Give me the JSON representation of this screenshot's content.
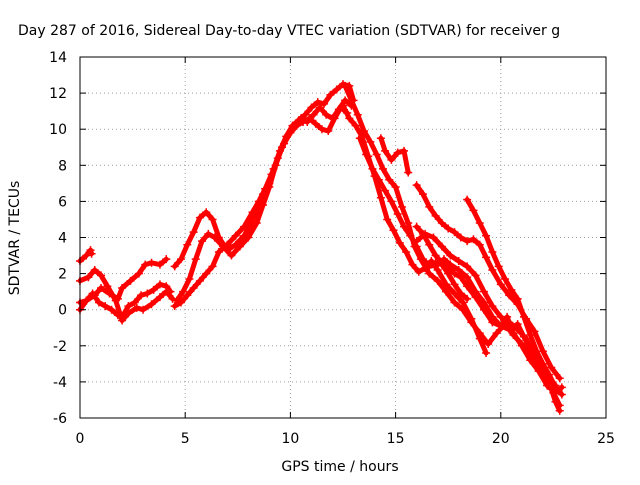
{
  "chart_data": {
    "type": "scatter",
    "title": "Day 287 of 2016, Sidereal Day-to-day VTEC variation (SDTVAR) for receiver g",
    "xlabel": "GPS time / hours",
    "ylabel": "SDTVAR / TECUs",
    "xlim": [
      0,
      25
    ],
    "ylim": [
      -6,
      14
    ],
    "x_ticks": [
      "0",
      "5",
      "10",
      "15",
      "20",
      "25"
    ],
    "y_ticks": [
      "-6",
      "-4",
      "-2",
      "0",
      "2",
      "4",
      "6",
      "8",
      "10",
      "12",
      "14"
    ],
    "x_tick_values": [
      0,
      5,
      10,
      15,
      20,
      25
    ],
    "y_tick_values": [
      -6,
      -4,
      -2,
      0,
      2,
      4,
      6,
      8,
      10,
      12,
      14
    ],
    "grid": true,
    "legend": "none",
    "marker": "+",
    "color": "#ff0000",
    "series": [
      {
        "points": [
          [
            0.0,
            2.7
          ],
          [
            0.3,
            3.0
          ],
          [
            0.5,
            3.3
          ],
          [
            0.55,
            3.1
          ]
        ]
      },
      {
        "points": [
          [
            0.0,
            1.6
          ],
          [
            0.4,
            1.8
          ],
          [
            0.7,
            2.2
          ],
          [
            1.0,
            1.9
          ],
          [
            1.3,
            1.3
          ],
          [
            1.7,
            0.5
          ],
          [
            2.0,
            -0.6
          ],
          [
            2.3,
            -0.2
          ],
          [
            2.7,
            0.1
          ],
          [
            3.0,
            0.0
          ],
          [
            3.4,
            0.3
          ],
          [
            3.8,
            0.7
          ],
          [
            4.1,
            1.0
          ],
          [
            4.4,
            0.6
          ]
        ]
      },
      {
        "points": [
          [
            0.0,
            0.0
          ],
          [
            0.3,
            0.5
          ],
          [
            0.7,
            0.8
          ],
          [
            1.0,
            1.2
          ],
          [
            1.4,
            0.9
          ],
          [
            1.8,
            0.6
          ],
          [
            2.0,
            1.2
          ],
          [
            2.4,
            1.6
          ],
          [
            2.8,
            2.0
          ],
          [
            3.1,
            2.5
          ],
          [
            3.4,
            2.6
          ],
          [
            3.8,
            2.5
          ],
          [
            4.1,
            2.8
          ]
        ]
      },
      {
        "points": [
          [
            0.0,
            0.4
          ],
          [
            0.3,
            0.5
          ],
          [
            0.6,
            0.9
          ],
          [
            0.9,
            0.4
          ],
          [
            1.2,
            0.2
          ],
          [
            1.5,
            0.0
          ],
          [
            1.8,
            -0.3
          ],
          [
            2.0,
            -0.4
          ],
          [
            2.3,
            0.2
          ],
          [
            2.6,
            0.4
          ],
          [
            2.9,
            0.8
          ],
          [
            3.2,
            0.9
          ],
          [
            3.5,
            1.1
          ],
          [
            3.8,
            1.4
          ],
          [
            4.1,
            1.3
          ],
          [
            4.3,
            1.0
          ]
        ]
      },
      {
        "points": [
          [
            4.5,
            2.4
          ],
          [
            4.8,
            2.8
          ],
          [
            5.1,
            3.6
          ],
          [
            5.4,
            4.3
          ],
          [
            5.7,
            5.1
          ],
          [
            6.0,
            5.4
          ],
          [
            6.3,
            5.0
          ],
          [
            6.6,
            4.0
          ],
          [
            7.0,
            3.3
          ],
          [
            7.4,
            3.6
          ],
          [
            7.8,
            4.1
          ],
          [
            8.1,
            4.7
          ],
          [
            8.4,
            5.5
          ],
          [
            8.7,
            6.4
          ],
          [
            9.0,
            7.0
          ],
          [
            9.2,
            7.8
          ],
          [
            9.5,
            8.8
          ],
          [
            9.8,
            9.6
          ],
          [
            10.1,
            10.2
          ],
          [
            10.4,
            10.5
          ],
          [
            10.7,
            10.8
          ],
          [
            11.0,
            11.2
          ],
          [
            11.3,
            11.5
          ],
          [
            11.6,
            11.4
          ],
          [
            11.9,
            11.9
          ],
          [
            12.2,
            12.2
          ],
          [
            12.5,
            12.5
          ],
          [
            12.8,
            12.4
          ],
          [
            13.0,
            11.6
          ]
        ]
      },
      {
        "points": [
          [
            4.6,
            0.5
          ],
          [
            4.9,
            1.0
          ],
          [
            5.2,
            1.7
          ],
          [
            5.5,
            2.8
          ],
          [
            5.8,
            3.8
          ],
          [
            6.1,
            4.2
          ],
          [
            6.4,
            4.0
          ],
          [
            6.8,
            3.5
          ],
          [
            7.2,
            3.0
          ],
          [
            7.6,
            3.5
          ],
          [
            8.0,
            4.0
          ],
          [
            8.4,
            4.8
          ],
          [
            8.7,
            5.8
          ],
          [
            9.0,
            6.8
          ],
          [
            9.3,
            8.0
          ],
          [
            9.6,
            9.0
          ],
          [
            9.9,
            9.7
          ],
          [
            10.2,
            10.1
          ],
          [
            10.5,
            10.6
          ],
          [
            10.8,
            10.4
          ],
          [
            11.1,
            10.8
          ],
          [
            11.4,
            11.2
          ],
          [
            11.7,
            10.8
          ],
          [
            12.0,
            10.6
          ],
          [
            12.3,
            11.1
          ],
          [
            12.6,
            11.6
          ],
          [
            12.9,
            11.3
          ]
        ]
      },
      {
        "points": [
          [
            4.5,
            0.2
          ],
          [
            4.8,
            0.4
          ],
          [
            5.1,
            0.8
          ],
          [
            5.4,
            1.2
          ],
          [
            5.7,
            1.6
          ],
          [
            6.0,
            2.0
          ],
          [
            6.3,
            2.4
          ],
          [
            6.6,
            3.2
          ],
          [
            7.0,
            3.6
          ],
          [
            7.4,
            4.1
          ],
          [
            7.8,
            4.6
          ],
          [
            8.2,
            5.4
          ],
          [
            8.5,
            6.0
          ],
          [
            8.8,
            6.7
          ],
          [
            9.1,
            7.5
          ],
          [
            9.4,
            8.4
          ],
          [
            9.7,
            9.2
          ],
          [
            10.0,
            9.8
          ],
          [
            10.3,
            10.2
          ],
          [
            10.6,
            10.4
          ],
          [
            10.9,
            10.6
          ],
          [
            11.2,
            10.3
          ],
          [
            11.5,
            10.0
          ],
          [
            11.8,
            9.9
          ],
          [
            12.1,
            10.6
          ],
          [
            12.4,
            11.2
          ],
          [
            12.7,
            10.9
          ]
        ]
      },
      {
        "points": [
          [
            12.6,
            12.4
          ],
          [
            12.9,
            11.6
          ],
          [
            13.2,
            10.8
          ],
          [
            13.5,
            9.9
          ],
          [
            13.8,
            9.3
          ],
          [
            14.1,
            8.6
          ],
          [
            14.4,
            7.8
          ],
          [
            14.7,
            7.2
          ],
          [
            15.0,
            6.8
          ],
          [
            15.3,
            5.7
          ],
          [
            15.6,
            4.8
          ],
          [
            15.9,
            3.5
          ],
          [
            16.2,
            2.8
          ],
          [
            16.6,
            2.0
          ],
          [
            17.0,
            1.6
          ],
          [
            17.4,
            1.0
          ],
          [
            17.8,
            0.4
          ],
          [
            18.2,
            0.0
          ],
          [
            18.6,
            -0.7
          ],
          [
            19.0,
            -1.3
          ],
          [
            19.4,
            -1.9
          ],
          [
            19.8,
            -1.3
          ],
          [
            20.2,
            -0.8
          ],
          [
            20.6,
            -1.4
          ],
          [
            21.0,
            -1.9
          ],
          [
            21.4,
            -2.6
          ],
          [
            21.8,
            -3.3
          ],
          [
            22.2,
            -3.9
          ],
          [
            22.5,
            -4.6
          ],
          [
            22.8,
            -5.3
          ]
        ]
      },
      {
        "points": [
          [
            12.5,
            11.3
          ],
          [
            12.8,
            10.6
          ],
          [
            13.1,
            10.2
          ],
          [
            13.4,
            9.6
          ],
          [
            13.7,
            8.5
          ],
          [
            14.0,
            7.4
          ],
          [
            14.3,
            6.2
          ],
          [
            14.6,
            5.0
          ],
          [
            14.9,
            4.4
          ],
          [
            15.2,
            3.7
          ],
          [
            15.5,
            3.2
          ],
          [
            15.8,
            2.5
          ],
          [
            16.1,
            2.1
          ],
          [
            16.4,
            2.3
          ],
          [
            16.7,
            2.7
          ],
          [
            17.0,
            2.2
          ],
          [
            17.4,
            1.4
          ],
          [
            17.8,
            0.9
          ],
          [
            18.2,
            0.4
          ],
          [
            18.6,
            -0.5
          ],
          [
            19.0,
            -1.6
          ],
          [
            19.3,
            -2.4
          ]
        ]
      },
      {
        "points": [
          [
            13.3,
            9.5
          ],
          [
            13.6,
            8.6
          ],
          [
            13.9,
            7.8
          ],
          [
            14.2,
            7.2
          ],
          [
            14.5,
            6.6
          ],
          [
            14.8,
            6.0
          ],
          [
            15.1,
            5.3
          ],
          [
            15.4,
            4.6
          ],
          [
            15.7,
            4.1
          ],
          [
            16.0,
            3.5
          ],
          [
            16.3,
            2.8
          ],
          [
            16.6,
            2.4
          ],
          [
            17.0,
            2.5
          ],
          [
            17.3,
            2.8
          ],
          [
            17.6,
            2.5
          ],
          [
            18.0,
            2.2
          ],
          [
            18.4,
            1.8
          ],
          [
            18.8,
            1.0
          ],
          [
            19.2,
            0.4
          ],
          [
            19.6,
            -0.4
          ],
          [
            20.0,
            -0.9
          ],
          [
            20.4,
            -1.1
          ],
          [
            20.8,
            -0.8
          ],
          [
            21.1,
            -1.5
          ],
          [
            21.4,
            -2.2
          ],
          [
            21.8,
            -3.0
          ],
          [
            22.2,
            -3.6
          ],
          [
            22.6,
            -4.2
          ]
        ]
      },
      {
        "points": [
          [
            14.3,
            9.5
          ],
          [
            14.5,
            8.8
          ],
          [
            14.8,
            8.3
          ],
          [
            15.1,
            8.7
          ],
          [
            15.4,
            8.8
          ],
          [
            15.6,
            7.6
          ]
        ]
      },
      {
        "points": [
          [
            16.0,
            4.6
          ],
          [
            16.3,
            4.2
          ],
          [
            16.6,
            3.6
          ],
          [
            16.9,
            3.0
          ],
          [
            17.2,
            2.6
          ],
          [
            17.5,
            2.3
          ],
          [
            17.8,
            2.0
          ],
          [
            18.1,
            1.8
          ],
          [
            18.4,
            1.3
          ],
          [
            18.8,
            0.7
          ],
          [
            19.2,
            0.0
          ],
          [
            19.6,
            -0.7
          ],
          [
            20.0,
            -0.9
          ],
          [
            20.3,
            -0.4
          ],
          [
            20.6,
            -1.3
          ],
          [
            21.0,
            -2.0
          ],
          [
            21.4,
            -2.8
          ],
          [
            21.8,
            -3.4
          ],
          [
            22.2,
            -4.2
          ],
          [
            22.6,
            -4.6
          ],
          [
            22.9,
            -4.3
          ]
        ]
      },
      {
        "points": [
          [
            16.0,
            6.9
          ],
          [
            16.3,
            6.4
          ],
          [
            16.6,
            5.7
          ],
          [
            16.9,
            5.2
          ],
          [
            17.2,
            4.8
          ],
          [
            17.5,
            4.5
          ],
          [
            17.8,
            4.3
          ],
          [
            18.1,
            4.0
          ],
          [
            18.4,
            3.8
          ],
          [
            18.7,
            3.9
          ],
          [
            19.0,
            3.6
          ],
          [
            19.3,
            2.9
          ],
          [
            19.6,
            2.2
          ],
          [
            20.0,
            1.4
          ],
          [
            20.4,
            0.8
          ],
          [
            20.8,
            0.3
          ],
          [
            21.2,
            -0.5
          ],
          [
            21.6,
            -1.2
          ],
          [
            22.0,
            -2.3
          ],
          [
            22.4,
            -3.2
          ],
          [
            22.8,
            -3.8
          ]
        ]
      },
      {
        "points": [
          [
            16.9,
            2.6
          ],
          [
            17.2,
            2.5
          ],
          [
            17.5,
            2.0
          ],
          [
            17.8,
            1.4
          ],
          [
            18.1,
            0.9
          ],
          [
            18.4,
            0.6
          ]
        ]
      },
      {
        "points": [
          [
            16.0,
            3.8
          ],
          [
            16.4,
            4.2
          ],
          [
            16.8,
            4.0
          ],
          [
            17.2,
            3.5
          ],
          [
            17.6,
            3.0
          ],
          [
            18.0,
            2.7
          ],
          [
            18.4,
            2.4
          ],
          [
            18.8,
            1.9
          ],
          [
            19.2,
            1.0
          ],
          [
            19.6,
            0.2
          ],
          [
            20.0,
            -0.4
          ],
          [
            20.4,
            -0.7
          ],
          [
            20.8,
            -1.1
          ],
          [
            21.2,
            -1.6
          ],
          [
            21.6,
            -2.5
          ],
          [
            22.0,
            -3.4
          ],
          [
            22.4,
            -4.4
          ],
          [
            22.6,
            -5.1
          ],
          [
            22.8,
            -5.6
          ]
        ]
      },
      {
        "points": [
          [
            18.4,
            6.1
          ],
          [
            18.7,
            5.5
          ],
          [
            19.0,
            4.8
          ],
          [
            19.3,
            4.1
          ],
          [
            19.6,
            3.2
          ],
          [
            19.9,
            2.4
          ],
          [
            20.2,
            1.7
          ],
          [
            20.5,
            1.1
          ],
          [
            20.8,
            0.6
          ],
          [
            21.1,
            -0.4
          ],
          [
            21.4,
            -1.4
          ],
          [
            21.7,
            -2.3
          ],
          [
            22.0,
            -3.0
          ],
          [
            22.3,
            -3.6
          ],
          [
            22.6,
            -4.3
          ],
          [
            22.9,
            -4.7
          ]
        ]
      }
    ]
  }
}
